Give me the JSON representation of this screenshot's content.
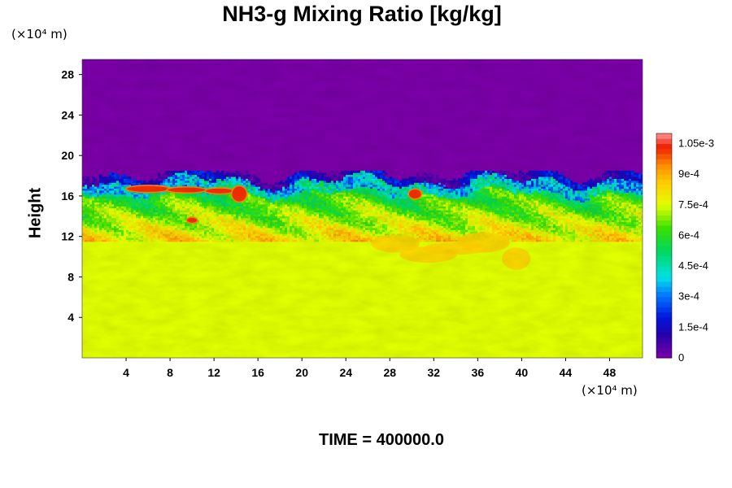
{
  "chart_data": {
    "type": "heatmap",
    "title": "NH3-g Mixing Ratio [kg/kg]",
    "ylabel": "Height",
    "xlabel": "",
    "x_unit": "(×10⁴ m)",
    "y_unit": "(×10⁴ m)",
    "footer": "TIME = 400000.0",
    "xlim": [
      0,
      51
    ],
    "ylim": [
      0,
      29.5
    ],
    "x_ticks": [
      "4",
      "8",
      "12",
      "16",
      "20",
      "24",
      "28",
      "32",
      "36",
      "40",
      "44",
      "48"
    ],
    "y_ticks": [
      "4",
      "8",
      "12",
      "16",
      "20",
      "24",
      "28"
    ],
    "colorbar": {
      "range": [
        0,
        0.0011
      ],
      "tick_labels": [
        "0",
        "1.5e-4",
        "3e-4",
        "4.5e-4",
        "6e-4",
        "7.5e-4",
        "9e-4",
        "1.05e-3"
      ],
      "tick_values": [
        0,
        0.00015,
        0.0003,
        0.00045,
        0.0006,
        0.00075,
        0.0009,
        0.00105
      ]
    },
    "field_summary": {
      "lower_layer_value": 0.00079,
      "lower_layer_top_height": 11.5,
      "upper_layer_value": 0,
      "mixing_zone_height_range": [
        11.5,
        18.5
      ],
      "mixing_zone_value_range": [
        0.0001,
        0.00105
      ]
    },
    "colors": {
      "lower_layer": "#e1ff00",
      "upper_layer": "#7a00a8"
    }
  }
}
